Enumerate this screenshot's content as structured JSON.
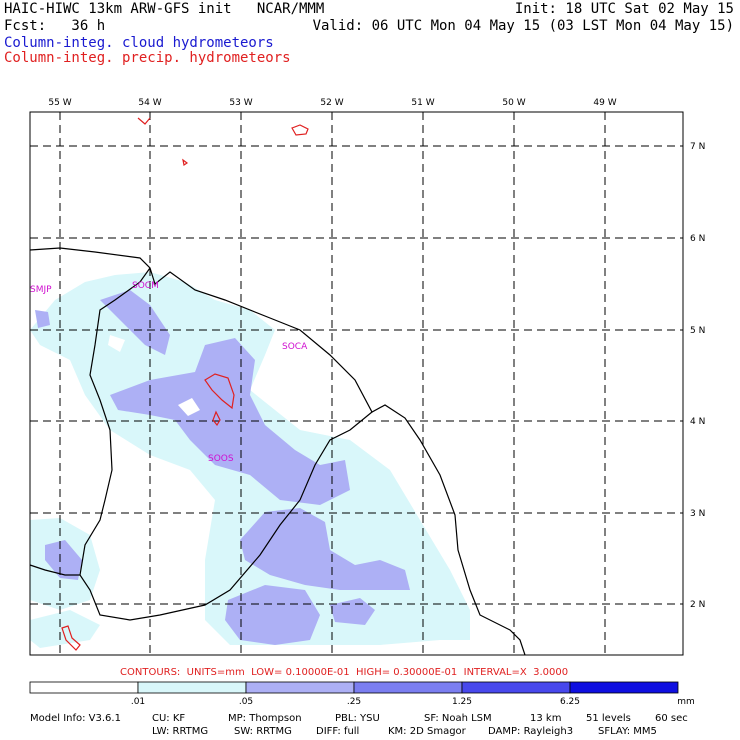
{
  "header": {
    "model_line": "HAIC-HIWC 13km ARW-GFS init   NCAR/MMM",
    "init_line": "Init: 18 UTC Sat 02 May 15",
    "fcst_line": "Fcst:   36 h",
    "valid_line": "Valid: 06 UTC Mon 04 May 15 (03 LST Mon 04 May 15)",
    "field1": "Column-integ. cloud hydrometeors",
    "field2": "Column-integ. precip. hydrometeors"
  },
  "map": {
    "lon_labels": [
      "55 W",
      "54 W",
      "53 W",
      "52 W",
      "51 W",
      "50 W",
      "49 W"
    ],
    "lat_labels": [
      "7 N",
      "6 N",
      "5 N",
      "4 N",
      "3 N",
      "2 N"
    ],
    "stations": [
      "SMJP",
      "SOCM",
      "SOCA",
      "SOOS"
    ]
  },
  "contours_info": "CONTOURS:  UNITS=mm  LOW= 0.10000E-01  HIGH= 0.30000E-01  INTERVAL=X  3.0000",
  "colorbar": {
    "ticks": [
      ".01",
      ".05",
      ".25",
      "1.25",
      "6.25"
    ],
    "unit": "mm",
    "colors": [
      "#ffffff",
      "#d9f7fa",
      "#adb0f5",
      "#7b7ef0",
      "#4848ec",
      "#0f0fe0"
    ]
  },
  "footer": {
    "model_info": "Model Info: V3.6.1",
    "cu": "CU: KF",
    "mp": "MP: Thompson",
    "pbl": "PBL: YSU",
    "sf": "SF: Noah LSM",
    "res": "13 km",
    "levels": "51 levels",
    "dt": "60 sec",
    "lw": "LW: RRTMG",
    "sw": "SW: RRTMG",
    "diff": "DIFF: full",
    "km": "KM: 2D Smagor",
    "damp": "DAMP: Rayleigh3",
    "sflay": "SFLAY: MM5"
  }
}
